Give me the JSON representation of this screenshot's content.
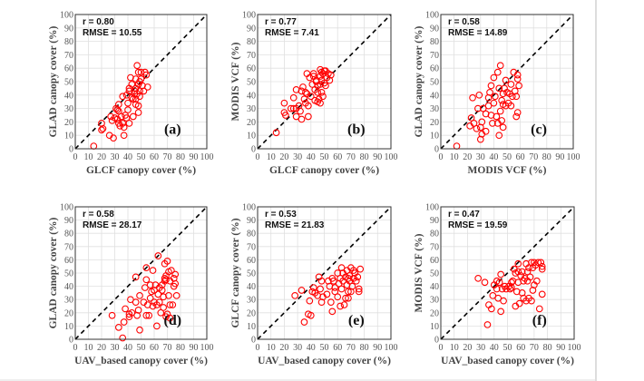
{
  "chart_data": [
    {
      "type": "scatter",
      "panel_label": "(a)",
      "stats": {
        "r": "r = 0.80",
        "rmse": "RMSE = 10.55"
      },
      "xlabel": "GLCF canopy cover (%)",
      "ylabel": "GLAD canopy cover (%)",
      "xlim": [
        0,
        100
      ],
      "ylim": [
        0,
        100
      ],
      "ticks": [
        0,
        10,
        20,
        30,
        40,
        50,
        60,
        70,
        80,
        90,
        100
      ],
      "grid": true,
      "reference_line": "1:1 dashed",
      "points": [
        [
          14,
          2
        ],
        [
          20,
          19
        ],
        [
          20,
          14
        ],
        [
          21,
          15
        ],
        [
          26,
          10
        ],
        [
          29,
          8
        ],
        [
          27,
          24
        ],
        [
          28,
          21
        ],
        [
          30,
          23
        ],
        [
          31,
          30
        ],
        [
          32,
          29
        ],
        [
          33,
          33
        ],
        [
          33,
          28
        ],
        [
          32,
          22
        ],
        [
          33,
          19
        ],
        [
          34,
          17
        ],
        [
          36,
          19
        ],
        [
          37,
          16
        ],
        [
          37,
          10
        ],
        [
          35,
          24
        ],
        [
          38,
          25
        ],
        [
          39,
          23
        ],
        [
          40,
          29
        ],
        [
          36,
          39
        ],
        [
          39,
          40
        ],
        [
          41,
          45
        ],
        [
          42,
          53
        ],
        [
          40,
          34
        ],
        [
          41,
          19
        ],
        [
          44,
          24
        ],
        [
          43,
          38
        ],
        [
          44,
          37
        ],
        [
          45,
          43
        ],
        [
          46,
          52
        ],
        [
          47,
          62
        ],
        [
          48,
          57
        ],
        [
          46,
          45
        ],
        [
          47,
          41
        ],
        [
          48,
          48
        ],
        [
          49,
          43
        ],
        [
          48,
          32
        ],
        [
          48,
          27
        ],
        [
          49,
          50
        ],
        [
          50,
          52
        ],
        [
          50,
          57
        ],
        [
          53,
          57
        ],
        [
          51,
          47
        ],
        [
          52,
          43
        ],
        [
          54,
          55
        ],
        [
          55,
          46
        ],
        [
          46,
          37
        ],
        [
          46,
          33
        ],
        [
          49,
          39
        ],
        [
          45,
          41
        ],
        [
          43,
          48
        ],
        [
          41,
          43
        ]
      ]
    },
    {
      "type": "scatter",
      "panel_label": "(b)",
      "stats": {
        "r": "r = 0.77",
        "rmse": "RMSE = 7.41"
      },
      "xlabel": "GLCF canopy cover (%)",
      "ylabel": "MODIS VCF (%)",
      "xlim": [
        0,
        100
      ],
      "ylim": [
        0,
        100
      ],
      "ticks": [
        0,
        10,
        20,
        30,
        40,
        50,
        60,
        70,
        80,
        90,
        100
      ],
      "grid": true,
      "reference_line": "1:1 dashed",
      "points": [
        [
          14,
          12
        ],
        [
          20,
          34
        ],
        [
          20,
          27
        ],
        [
          21,
          25
        ],
        [
          25,
          30
        ],
        [
          27,
          38
        ],
        [
          27,
          30
        ],
        [
          29,
          30
        ],
        [
          29,
          44
        ],
        [
          29,
          24
        ],
        [
          31,
          32
        ],
        [
          32,
          28
        ],
        [
          33,
          22
        ],
        [
          34,
          46
        ],
        [
          35,
          37
        ],
        [
          33,
          43
        ],
        [
          36,
          42
        ],
        [
          36,
          34
        ],
        [
          37,
          41
        ],
        [
          38,
          24
        ],
        [
          37,
          56
        ],
        [
          38,
          32
        ],
        [
          39,
          53
        ],
        [
          40,
          39
        ],
        [
          41,
          48
        ],
        [
          42,
          54
        ],
        [
          43,
          44
        ],
        [
          43,
          36
        ],
        [
          44,
          51
        ],
        [
          45,
          42
        ],
        [
          45,
          47
        ],
        [
          46,
          37
        ],
        [
          47,
          54
        ],
        [
          47,
          59
        ],
        [
          48,
          51
        ],
        [
          48,
          42
        ],
        [
          49,
          39
        ],
        [
          49,
          56
        ],
        [
          50,
          49
        ],
        [
          51,
          58
        ],
        [
          51,
          47
        ],
        [
          52,
          53
        ],
        [
          53,
          56
        ],
        [
          54,
          51
        ],
        [
          55,
          55
        ],
        [
          47,
          48
        ],
        [
          44,
          50
        ],
        [
          42,
          56
        ],
        [
          48,
          57
        ],
        [
          50,
          58
        ],
        [
          45,
          35
        ],
        [
          47,
          34
        ]
      ]
    },
    {
      "type": "scatter",
      "panel_label": "(c)",
      "stats": {
        "r": "r = 0.58",
        "rmse": "RMSE = 14.89"
      },
      "xlabel": "MODIS VCF (%)",
      "ylabel": "GLAD canopy cover (%)",
      "xlim": [
        0,
        100
      ],
      "ylim": [
        0,
        100
      ],
      "ticks": [
        0,
        10,
        20,
        30,
        40,
        50,
        60,
        70,
        80,
        90,
        100
      ],
      "grid": true,
      "reference_line": "1:1 dashed",
      "points": [
        [
          12,
          2
        ],
        [
          22,
          17
        ],
        [
          23,
          23
        ],
        [
          24,
          38
        ],
        [
          25,
          19
        ],
        [
          27,
          15
        ],
        [
          28,
          30
        ],
        [
          29,
          40
        ],
        [
          30,
          16
        ],
        [
          30,
          7
        ],
        [
          31,
          11
        ],
        [
          31,
          20
        ],
        [
          32,
          30
        ],
        [
          34,
          26
        ],
        [
          34,
          13
        ],
        [
          36,
          32
        ],
        [
          36,
          38
        ],
        [
          37,
          42
        ],
        [
          38,
          25
        ],
        [
          38,
          47
        ],
        [
          39,
          19
        ],
        [
          40,
          53
        ],
        [
          40,
          34
        ],
        [
          41,
          39
        ],
        [
          42,
          24
        ],
        [
          43,
          19
        ],
        [
          43,
          57
        ],
        [
          44,
          10
        ],
        [
          44,
          45
        ],
        [
          45,
          28
        ],
        [
          45,
          62
        ],
        [
          46,
          36
        ],
        [
          46,
          21
        ],
        [
          47,
          16
        ],
        [
          47,
          33
        ],
        [
          48,
          45
        ],
        [
          49,
          51
        ],
        [
          49,
          32
        ],
        [
          50,
          42
        ],
        [
          51,
          34
        ],
        [
          52,
          41
        ],
        [
          53,
          32
        ],
        [
          53,
          48
        ],
        [
          54,
          39
        ],
        [
          55,
          57
        ],
        [
          56,
          43
        ],
        [
          57,
          24
        ],
        [
          57,
          39
        ],
        [
          58,
          55
        ],
        [
          58,
          27
        ],
        [
          59,
          47
        ],
        [
          58,
          52
        ],
        [
          47,
          41
        ]
      ]
    },
    {
      "type": "scatter",
      "panel_label": "(d)",
      "stats": {
        "r": "r = 0.58",
        "rmse": "RMSE = 28.17"
      },
      "xlabel": "UAV_based canopy cover (%)",
      "ylabel": "GLAD canopy cover (%)",
      "xlim": [
        0,
        100
      ],
      "ylim": [
        0,
        100
      ],
      "ticks": [
        0,
        10,
        20,
        30,
        40,
        50,
        60,
        70,
        80,
        90,
        100
      ],
      "grid": true,
      "reference_line": "1:1 dashed",
      "points": [
        [
          28,
          18
        ],
        [
          33,
          9
        ],
        [
          36,
          1
        ],
        [
          37,
          13
        ],
        [
          38,
          23
        ],
        [
          41,
          19
        ],
        [
          41,
          17
        ],
        [
          42,
          30
        ],
        [
          43,
          20
        ],
        [
          46,
          28
        ],
        [
          46,
          47
        ],
        [
          47,
          18
        ],
        [
          48,
          22
        ],
        [
          49,
          7
        ],
        [
          49,
          33
        ],
        [
          52,
          28
        ],
        [
          53,
          39
        ],
        [
          54,
          45
        ],
        [
          54,
          54
        ],
        [
          54,
          18
        ],
        [
          55,
          26
        ],
        [
          56,
          18
        ],
        [
          57,
          31
        ],
        [
          57,
          41
        ],
        [
          58,
          36
        ],
        [
          59,
          25
        ],
        [
          59,
          52
        ],
        [
          60,
          28
        ],
        [
          60,
          37
        ],
        [
          61,
          41
        ],
        [
          62,
          26
        ],
        [
          62,
          10
        ],
        [
          63,
          34
        ],
        [
          63,
          63
        ],
        [
          64,
          39
        ],
        [
          64,
          28
        ],
        [
          65,
          20
        ],
        [
          66,
          37
        ],
        [
          66,
          41
        ],
        [
          67,
          24
        ],
        [
          67,
          32
        ],
        [
          68,
          46
        ],
        [
          68,
          57
        ],
        [
          69,
          17
        ],
        [
          69,
          45
        ],
        [
          70,
          19
        ],
        [
          70,
          59
        ],
        [
          71,
          51
        ],
        [
          71,
          33
        ],
        [
          72,
          16
        ],
        [
          72,
          26
        ],
        [
          72,
          44
        ],
        [
          73,
          52
        ],
        [
          74,
          26
        ],
        [
          75,
          40
        ],
        [
          75,
          46
        ],
        [
          76,
          49
        ],
        [
          76,
          42
        ],
        [
          77,
          33
        ],
        [
          69,
          48
        ],
        [
          68,
          44
        ]
      ]
    },
    {
      "type": "scatter",
      "panel_label": "(e)",
      "stats": {
        "r": "r = 0.53",
        "rmse": "RMSE = 21.83"
      },
      "xlabel": "UAV_based canopy cover (%)",
      "ylabel": "GLCF canopy cover (%)",
      "xlim": [
        0,
        100
      ],
      "ylim": [
        0,
        100
      ],
      "ticks": [
        0,
        10,
        20,
        30,
        40,
        50,
        60,
        70,
        80,
        90,
        100
      ],
      "grid": true,
      "reference_line": "1:1 dashed",
      "points": [
        [
          28,
          33
        ],
        [
          33,
          37
        ],
        [
          35,
          13
        ],
        [
          38,
          19
        ],
        [
          40,
          18
        ],
        [
          39,
          29
        ],
        [
          41,
          36
        ],
        [
          42,
          39
        ],
        [
          43,
          35
        ],
        [
          45,
          33
        ],
        [
          46,
          47
        ],
        [
          47,
          38
        ],
        [
          48,
          44
        ],
        [
          48,
          28
        ],
        [
          49,
          32
        ],
        [
          52,
          34
        ],
        [
          53,
          44
        ],
        [
          54,
          40
        ],
        [
          55,
          28
        ],
        [
          56,
          46
        ],
        [
          56,
          21
        ],
        [
          57,
          44
        ],
        [
          58,
          36
        ],
        [
          58,
          39
        ],
        [
          60,
          50
        ],
        [
          60,
          32
        ],
        [
          61,
          42
        ],
        [
          62,
          25
        ],
        [
          62,
          46
        ],
        [
          63,
          38
        ],
        [
          64,
          50
        ],
        [
          64,
          44
        ],
        [
          65,
          26
        ],
        [
          66,
          31
        ],
        [
          66,
          47
        ],
        [
          67,
          41
        ],
        [
          67,
          52
        ],
        [
          68,
          36
        ],
        [
          68,
          46
        ],
        [
          68,
          31
        ],
        [
          69,
          48
        ],
        [
          69,
          44
        ],
        [
          70,
          54
        ],
        [
          70,
          36
        ],
        [
          71,
          40
        ],
        [
          72,
          52
        ],
        [
          72,
          46
        ],
        [
          73,
          50
        ],
        [
          74,
          44
        ],
        [
          75,
          47
        ],
        [
          76,
          38
        ],
        [
          76,
          36
        ],
        [
          77,
          53
        ],
        [
          63,
          54
        ]
      ]
    },
    {
      "type": "scatter",
      "panel_label": "(f)",
      "stats": {
        "r": "r = 0.47",
        "rmse": "RMSE = 19.59"
      },
      "xlabel": "UAV_based canopy cover (%)",
      "ylabel": "MODIS VCF (%)",
      "xlim": [
        0,
        100
      ],
      "ylim": [
        0,
        100
      ],
      "ticks": [
        0,
        10,
        20,
        30,
        40,
        50,
        60,
        70,
        80,
        90,
        100
      ],
      "grid": true,
      "reference_line": "1:1 dashed",
      "points": [
        [
          28,
          46
        ],
        [
          33,
          43
        ],
        [
          35,
          11
        ],
        [
          36,
          26
        ],
        [
          38,
          23
        ],
        [
          39,
          33
        ],
        [
          40,
          41
        ],
        [
          42,
          38
        ],
        [
          42,
          44
        ],
        [
          43,
          31
        ],
        [
          44,
          43
        ],
        [
          45,
          49
        ],
        [
          45,
          21
        ],
        [
          46,
          38
        ],
        [
          47,
          29
        ],
        [
          48,
          40
        ],
        [
          49,
          38
        ],
        [
          51,
          40
        ],
        [
          52,
          38
        ],
        [
          53,
          43
        ],
        [
          53,
          39
        ],
        [
          54,
          44
        ],
        [
          55,
          53
        ],
        [
          56,
          25
        ],
        [
          56,
          50
        ],
        [
          57,
          36
        ],
        [
          58,
          43
        ],
        [
          58,
          57
        ],
        [
          58,
          51
        ],
        [
          59,
          27
        ],
        [
          60,
          48
        ],
        [
          61,
          35
        ],
        [
          61,
          51
        ],
        [
          62,
          31
        ],
        [
          62,
          44
        ],
        [
          63,
          46
        ],
        [
          64,
          57
        ],
        [
          64,
          29
        ],
        [
          65,
          44
        ],
        [
          65,
          51
        ],
        [
          66,
          31
        ],
        [
          66,
          54
        ],
        [
          67,
          47
        ],
        [
          68,
          29
        ],
        [
          68,
          58
        ],
        [
          69,
          37
        ],
        [
          69,
          54
        ],
        [
          70,
          58
        ],
        [
          70,
          41
        ],
        [
          71,
          56
        ],
        [
          72,
          44
        ],
        [
          73,
          58
        ],
        [
          74,
          23
        ],
        [
          75,
          58
        ],
        [
          76,
          53
        ],
        [
          76,
          34
        ],
        [
          76,
          55
        ]
      ]
    }
  ],
  "colors": {
    "marker": "#ff0000",
    "grid": "#e0e0e0",
    "reference_line": "#000000",
    "frame": "#333333"
  }
}
